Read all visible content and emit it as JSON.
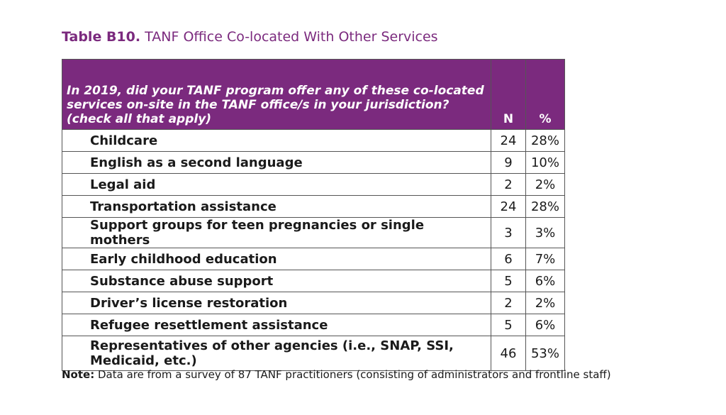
{
  "title": {
    "label": "Table B10.",
    "text": "TANF Office Co-located With Other Services"
  },
  "table": {
    "header": {
      "question": "In 2019, did your TANF program offer any of these co-located services on-site in the TANF office/s in your jurisdiction? (check all that apply)",
      "n": "N",
      "pct": "%"
    },
    "rows": [
      {
        "item": "Childcare",
        "n": "24",
        "pct": "28%"
      },
      {
        "item": "English as a second language",
        "n": "9",
        "pct": "10%"
      },
      {
        "item": "Legal aid",
        "n": "2",
        "pct": "2%"
      },
      {
        "item": "Transportation assistance",
        "n": "24",
        "pct": "28%"
      },
      {
        "item": "Support groups for teen pregnancies or single mothers",
        "n": "3",
        "pct": "3%"
      },
      {
        "item": "Early childhood education",
        "n": "6",
        "pct": "7%"
      },
      {
        "item": "Substance abuse support",
        "n": "5",
        "pct": "6%"
      },
      {
        "item": "Driver’s license restoration",
        "n": "2",
        "pct": "2%"
      },
      {
        "item": "Refugee resettlement assistance",
        "n": "5",
        "pct": "6%"
      },
      {
        "item": "Representatives of other agencies (i.e., SNAP, SSI, Medicaid, etc.)",
        "n": "46",
        "pct": "53%"
      }
    ]
  },
  "note": {
    "label": "Note:",
    "text": "Data are from a survey of 87 TANF practitioners (consisting of administrators and frontline staff)"
  },
  "colors": {
    "header_bg": "#7b2a7e",
    "title": "#7b2a7e"
  }
}
